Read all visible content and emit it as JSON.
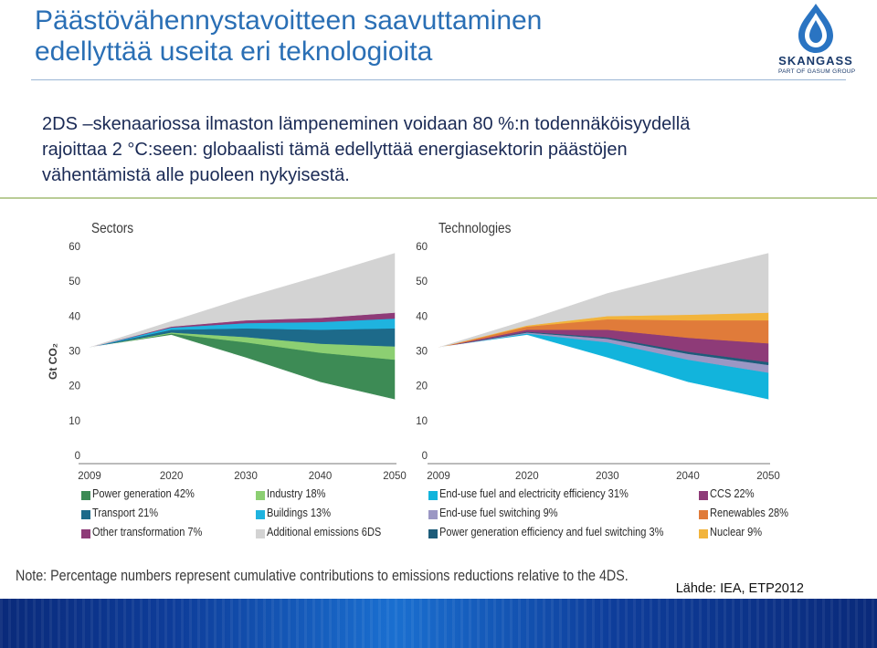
{
  "slide": {
    "title_line1": "Päästövähennystavoitteen saavuttaminen",
    "title_line2": "edellyttää useita eri teknologioita",
    "body_line1": "2DS –skenaariossa ilmaston lämpeneminen voidaan 80 %:n todennäköisyydellä",
    "body_line2": "rajoittaa 2 °C:seen: globaalisti tämä edellyttää energiasektorin päästöjen",
    "body_line3": "vähentämistä alle puoleen nykyisestä.",
    "source": "Lähde: IEA, ETP2012",
    "note": "Note: Percentage numbers represent cumulative contributions to emissions reductions relative to the 4DS."
  },
  "logo": {
    "name": "SKANGASS",
    "subtitle": "PART OF GASUM GROUP",
    "color": "#2a74c2"
  },
  "chart_data": [
    {
      "type": "area",
      "title": "Sectors",
      "ylabel": "Gt CO₂",
      "x": [
        2009,
        2020,
        2030,
        2040,
        2050
      ],
      "x_ticks": [
        "2009",
        "2020",
        "2030",
        "2040",
        "2050"
      ],
      "y_ticks": [
        "0",
        "10",
        "20",
        "30",
        "40",
        "50",
        "60"
      ],
      "ylim": [
        0,
        60
      ],
      "baseline_remaining": [
        31,
        34.5,
        28,
        21,
        16
      ],
      "series": [
        {
          "name": "Power generation 42%",
          "color": "#3d8b55",
          "values": [
            0,
            0.5,
            4.5,
            8.5,
            11.5
          ]
        },
        {
          "name": "Industry 18%",
          "color": "#8ccf72",
          "values": [
            0,
            0.3,
            1.5,
            2.6,
            3.8
          ]
        },
        {
          "name": "Transport 21%",
          "color": "#1d6a8a",
          "values": [
            0,
            0.8,
            2.5,
            4.0,
            5.2
          ]
        },
        {
          "name": "Buildings 13%",
          "color": "#1fb3df",
          "values": [
            0,
            0.6,
            1.5,
            2.2,
            2.8
          ]
        },
        {
          "name": "Other transformation 7%",
          "color": "#8e3b78",
          "values": [
            0,
            0.3,
            0.8,
            1.2,
            1.7
          ]
        },
        {
          "name": "Additional emissions 6DS",
          "color": "#d3d3d3",
          "values": [
            0,
            1.5,
            6.5,
            12.0,
            17.0
          ]
        }
      ]
    },
    {
      "type": "area",
      "title": "Technologies",
      "x": [
        2009,
        2020,
        2030,
        2040,
        2050
      ],
      "x_ticks": [
        "2009",
        "2020",
        "2030",
        "2040",
        "2050"
      ],
      "y_ticks": [
        "0",
        "10",
        "20",
        "30",
        "40",
        "50",
        "60"
      ],
      "ylim": [
        0,
        60
      ],
      "baseline_remaining": [
        31,
        34.5,
        28,
        21,
        16
      ],
      "series": [
        {
          "name": "End-use fuel and electricity efficiency 31%",
          "color": "#12b4dc",
          "values": [
            0,
            0.5,
            4.5,
            6.5,
            7.8
          ]
        },
        {
          "name": "End-use fuel switching 9%",
          "color": "#9b97c4",
          "values": [
            0,
            0.3,
            1.0,
            1.7,
            2.2
          ]
        },
        {
          "name": "Power generation efficiency and fuel switching 3%",
          "color": "#1d5c7a",
          "values": [
            0,
            0.2,
            0.4,
            0.6,
            0.8
          ]
        },
        {
          "name": "CCS 22%",
          "color": "#8e3b78",
          "values": [
            0,
            0.6,
            2.2,
            4.0,
            5.4
          ]
        },
        {
          "name": "Renewables 28%",
          "color": "#e07b3a",
          "values": [
            0,
            0.9,
            3.0,
            5.0,
            6.6
          ]
        },
        {
          "name": "Nuclear 9%",
          "color": "#f2b43c",
          "values": [
            0,
            0.3,
            0.9,
            1.6,
            2.2
          ]
        },
        {
          "name": "",
          "color": "#d3d3d3",
          "values": [
            0,
            1.5,
            6.5,
            12.0,
            17.0
          ]
        }
      ]
    }
  ]
}
